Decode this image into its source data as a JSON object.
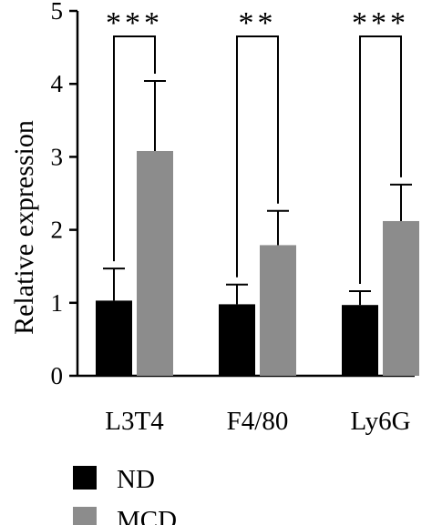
{
  "chart_data": {
    "type": "bar",
    "ylabel": "Relative expression",
    "ylim": [
      0,
      5
    ],
    "yticks": [
      "0",
      "1",
      "2",
      "3",
      "4",
      "5"
    ],
    "categories": [
      "L3T4",
      "F4/80",
      "Ly6G"
    ],
    "series": [
      {
        "name": "ND",
        "color": "#000000",
        "values": [
          1.03,
          0.98,
          0.97
        ],
        "errors": [
          0.44,
          0.27,
          0.19
        ]
      },
      {
        "name": "MCD",
        "color": "#8c8c8c",
        "values": [
          3.08,
          1.79,
          2.12
        ],
        "errors": [
          0.96,
          0.47,
          0.5
        ]
      }
    ],
    "significance": [
      "***",
      "**",
      "***"
    ],
    "legend_position": "bottom-left",
    "grid": false
  }
}
